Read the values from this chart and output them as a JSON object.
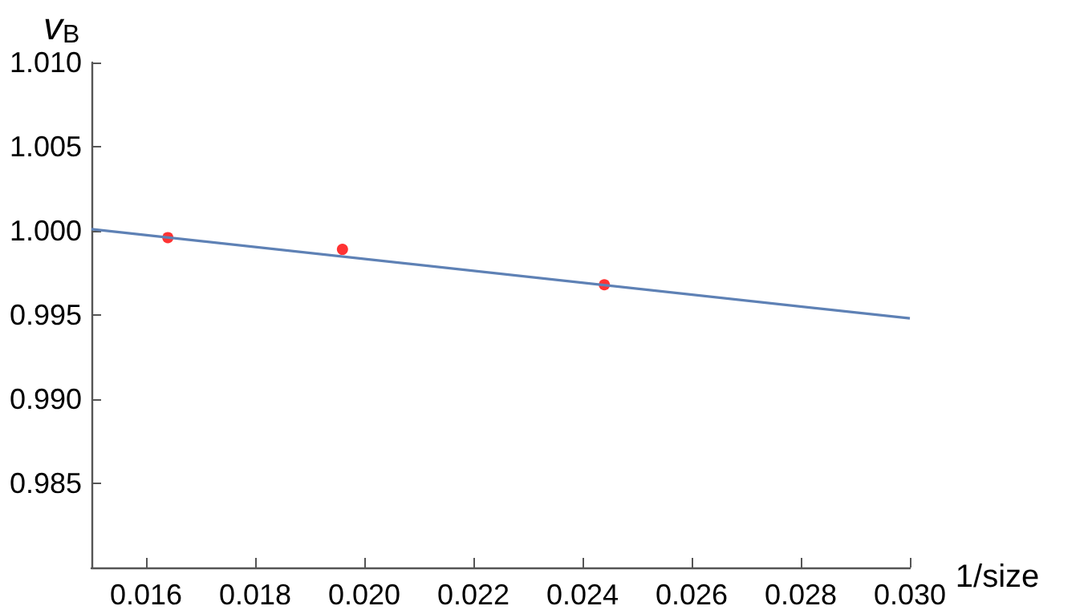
{
  "chart_data": {
    "type": "scatter",
    "xlabel": "1/size",
    "ylabel": "v$_{B}$",
    "xlim": [
      0.015,
      0.03
    ],
    "xticks": [
      0.016,
      0.018,
      {
        "value": 0.02,
        "label": "0.020"
      },
      0.022,
      0.024,
      0.026,
      0.028,
      {
        "value": 0.03,
        "label": "0.030"
      }
    ],
    "ylim": [
      0.98,
      1.01
    ],
    "yticks": [
      0.985,
      {
        "value": 0.99,
        "label": "0.990"
      },
      0.995,
      {
        "value": 1.0,
        "label": "1.000"
      },
      1.005,
      {
        "value": 1.01,
        "label": "1.010"
      }
    ],
    "grid": false,
    "series": [
      {
        "marker": "circle",
        "color": "#ff0000",
        "x": [
          0.0164,
          0.0196,
          0.0244
        ],
        "values": [
          0.9996,
          0.9989,
          0.9968
        ]
      },
      {
        "type": "line",
        "marker": "none",
        "line_style": "solid",
        "color": "#5e81b5",
        "x": [
          0.015,
          0.03
        ],
        "values": [
          1.0001,
          0.9948
        ]
      }
    ]
  }
}
